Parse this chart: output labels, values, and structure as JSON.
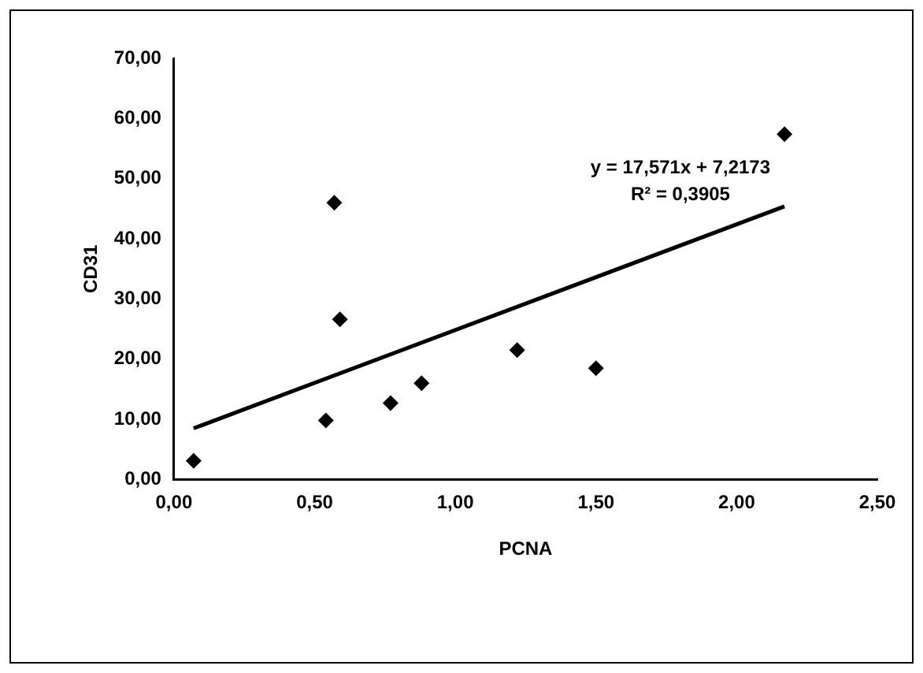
{
  "chart_data": {
    "type": "scatter",
    "xlabel": "PCNA",
    "ylabel": "CD31",
    "series": [
      {
        "type": "scatter",
        "marker": "diamond",
        "color": "#000000",
        "x": [
          0.07,
          0.54,
          0.57,
          0.59,
          0.77,
          0.88,
          1.22,
          1.5,
          2.17
        ],
        "values": [
          3.1,
          9.8,
          46.0,
          26.6,
          12.7,
          16.0,
          21.5,
          18.5,
          57.4
        ]
      },
      {
        "type": "line",
        "marker": "none",
        "color": "#000000",
        "x": [
          0.07,
          2.17
        ],
        "values": [
          8.5,
          45.4
        ]
      }
    ],
    "xlim": [
      0,
      2.5
    ],
    "ylim": [
      0,
      70
    ],
    "xticks": [
      {
        "value": 0,
        "label": "0,00"
      },
      {
        "value": 0.5,
        "label": "0,50"
      },
      {
        "value": 1,
        "label": "1,00"
      },
      {
        "value": 1.5,
        "label": "1,50"
      },
      {
        "value": 2,
        "label": "2,00"
      },
      {
        "value": 2.5,
        "label": "2,50"
      }
    ],
    "yticks": [
      {
        "value": 0,
        "label": "0,00"
      },
      {
        "value": 10,
        "label": "10,00"
      },
      {
        "value": 20,
        "label": "20,00"
      },
      {
        "value": 30,
        "label": "30,00"
      },
      {
        "value": 40,
        "label": "40,00"
      },
      {
        "value": 50,
        "label": "50,00"
      },
      {
        "value": 60,
        "label": "60,00"
      },
      {
        "value": 70,
        "label": "70,00"
      }
    ],
    "annotations": [
      "y = 17,571x + 7,2173",
      "R² = 0,3905"
    ],
    "grid": false,
    "legend": false,
    "line_style": "solid"
  }
}
